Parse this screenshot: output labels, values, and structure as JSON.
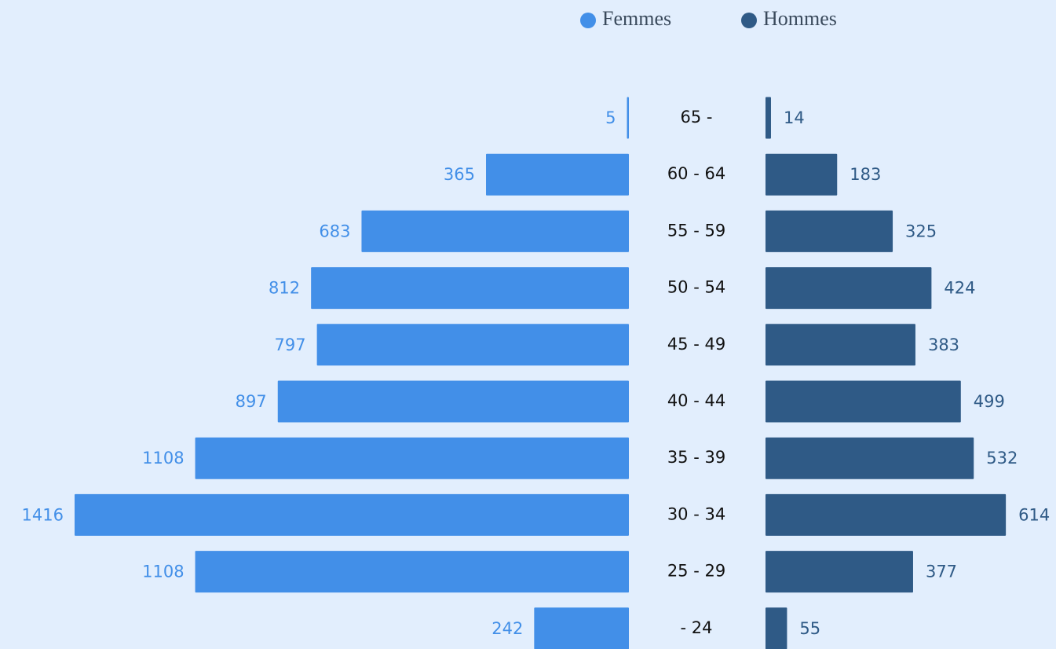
{
  "chart_data": {
    "type": "pyramid",
    "categories": [
      "65 -",
      "60 - 64",
      "55 - 59",
      "50 - 54",
      "45 - 49",
      "40 - 44",
      "35 - 39",
      "30 - 34",
      "25 - 29",
      "- 24"
    ],
    "series": [
      {
        "name": "Femmes",
        "color": "#428fe8",
        "values": [
          5,
          365,
          683,
          812,
          797,
          897,
          1108,
          1416,
          1108,
          242
        ]
      },
      {
        "name": "Hommes",
        "color": "#2f5a86",
        "values": [
          14,
          183,
          325,
          424,
          383,
          499,
          532,
          614,
          377,
          55
        ]
      }
    ],
    "legend": "top"
  }
}
